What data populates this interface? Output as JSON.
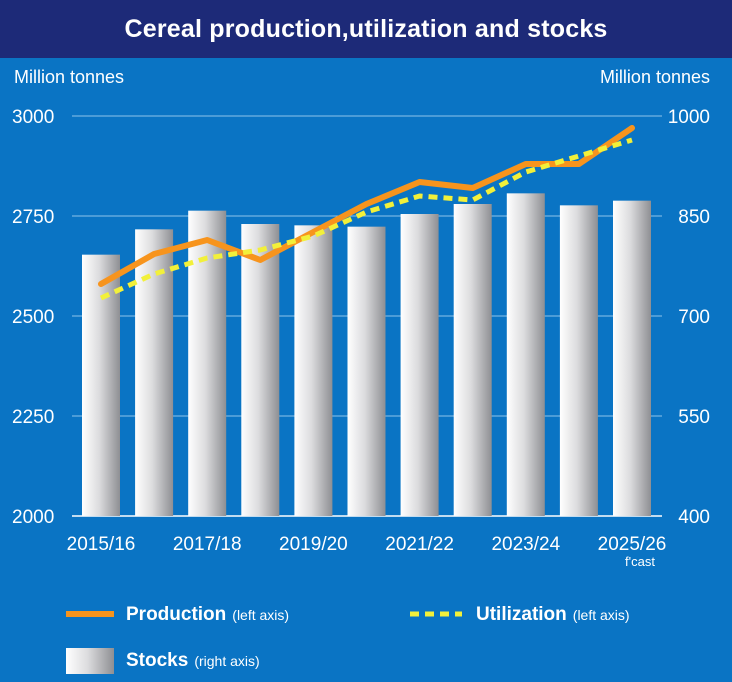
{
  "chart_data": {
    "type": "bar+line",
    "title": "Cereal production,utilization and stocks",
    "left_axis": {
      "unit_label": "Million tonnes",
      "range": [
        2000,
        3000
      ],
      "ticks": [
        2000,
        2250,
        2500,
        2750,
        3000
      ]
    },
    "right_axis": {
      "unit_label": "Million tonnes",
      "range": [
        400,
        1000
      ],
      "ticks": [
        400,
        550,
        700,
        850,
        1000
      ]
    },
    "categories": [
      "2015/16",
      "2016/17",
      "2017/18",
      "2018/19",
      "2019/20",
      "2020/21",
      "2021/22",
      "2022/23",
      "2023/24",
      "2024/25",
      "2025/26"
    ],
    "x_tick_labels": [
      "2015/16",
      "2017/18",
      "2019/20",
      "2021/22",
      "2023/24",
      "2025/26"
    ],
    "x_note": "f'cast",
    "grid": "horizontal",
    "series": [
      {
        "name": "Stocks",
        "axis_note": "(right axis)",
        "type": "bar",
        "axis": "right",
        "color": "#c8c8ca",
        "values": [
          792,
          830,
          858,
          838,
          836,
          834,
          853,
          868,
          884,
          866,
          873
        ]
      },
      {
        "name": "Production",
        "axis_note": "(left axis)",
        "type": "line",
        "axis": "left",
        "color": "#f7941d",
        "style": "solid",
        "values": [
          2580,
          2655,
          2690,
          2640,
          2710,
          2780,
          2835,
          2820,
          2880,
          2880,
          2970
        ]
      },
      {
        "name": "Utilization",
        "axis_note": "(left axis)",
        "type": "line",
        "axis": "left",
        "color": "#f2f03a",
        "style": "dashed",
        "values": [
          2545,
          2605,
          2645,
          2665,
          2700,
          2760,
          2800,
          2790,
          2860,
          2900,
          2940
        ]
      }
    ]
  }
}
